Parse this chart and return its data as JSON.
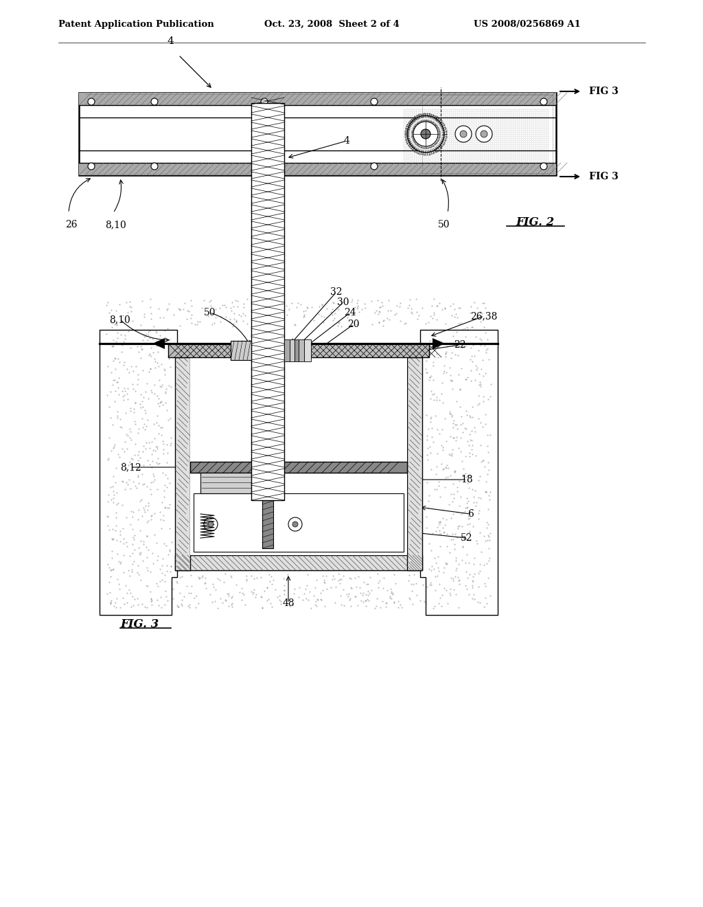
{
  "bg_color": "#ffffff",
  "header_text": "Patent Application Publication",
  "header_date": "Oct. 23, 2008  Sheet 2 of 4",
  "header_patent": "US 2008/0256869 A1",
  "line_color": "#000000",
  "light_gray": "#cccccc",
  "medium_gray": "#888888",
  "dark_gray": "#444444",
  "hatch_gray": "#666666"
}
